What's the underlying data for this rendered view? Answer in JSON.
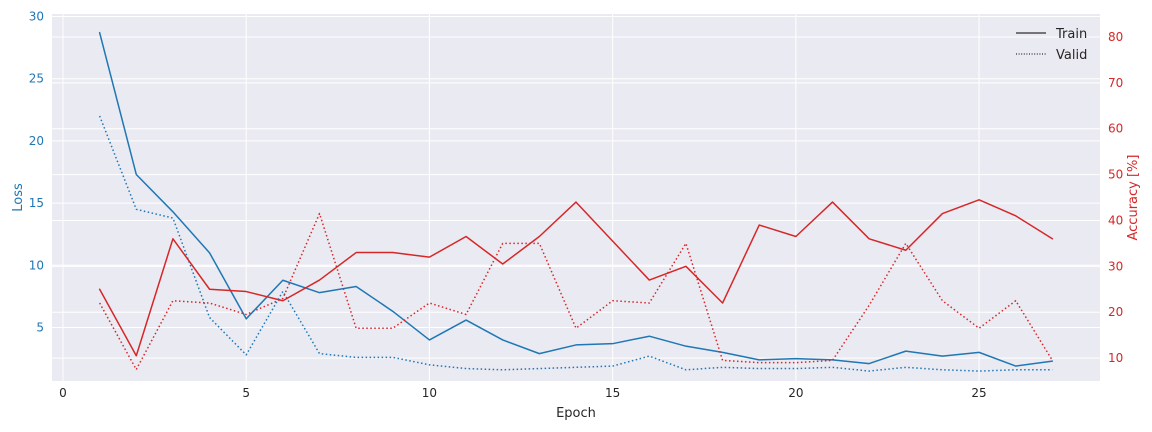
{
  "chart_data": {
    "type": "line",
    "xlabel": "Epoch",
    "xlim": [
      -0.3,
      28.3
    ],
    "xticks": [
      0,
      5,
      10,
      15,
      20,
      25
    ],
    "grid": true,
    "legend": {
      "placement": "top-right",
      "entries": [
        "Train",
        "Valid"
      ]
    },
    "left_axis": {
      "label": "Loss",
      "color": "#1f77b4",
      "ylim": [
        0.7,
        30.2
      ],
      "ticks": [
        5,
        10,
        15,
        20,
        25,
        30
      ]
    },
    "right_axis": {
      "label": "Accuracy [%]",
      "color": "#d62728",
      "ylim": [
        5,
        85
      ],
      "ticks": [
        10,
        20,
        30,
        40,
        50,
        60,
        70,
        80
      ]
    },
    "x": [
      1,
      2,
      3,
      4,
      5,
      6,
      7,
      8,
      9,
      10,
      11,
      12,
      13,
      14,
      15,
      16,
      17,
      18,
      19,
      20,
      21,
      22,
      23,
      24,
      25,
      26,
      27
    ],
    "series": [
      {
        "name": "Train",
        "metric": "Loss",
        "axis": "left",
        "style": "solid",
        "color": "#1f77b4",
        "values": [
          28.7,
          17.3,
          14.3,
          11.0,
          5.7,
          8.8,
          7.8,
          8.3,
          6.3,
          4.0,
          5.6,
          4.0,
          2.9,
          3.6,
          3.7,
          4.3,
          3.5,
          3.0,
          2.4,
          2.5,
          2.4,
          2.1,
          3.1,
          2.7,
          3.0,
          1.9,
          2.3
        ]
      },
      {
        "name": "Valid",
        "metric": "Loss",
        "axis": "left",
        "style": "dotted",
        "color": "#1f77b4",
        "values": [
          22.0,
          14.5,
          13.8,
          5.8,
          2.8,
          7.9,
          2.9,
          2.6,
          2.6,
          2.0,
          1.7,
          1.6,
          1.7,
          1.8,
          1.9,
          2.7,
          1.6,
          1.8,
          1.7,
          1.7,
          1.8,
          1.5,
          1.8,
          1.6,
          1.5,
          1.6,
          1.6
        ]
      },
      {
        "name": "Train",
        "metric": "Accuracy [%]",
        "axis": "right",
        "style": "solid",
        "color": "#d62728",
        "values": [
          25.0,
          10.5,
          36.0,
          25.0,
          24.5,
          22.5,
          27.0,
          33.0,
          33.0,
          32.0,
          36.5,
          30.5,
          36.5,
          44.0,
          35.5,
          27.0,
          30.0,
          22.0,
          39.0,
          36.5,
          44.0,
          36.0,
          33.5,
          41.5,
          44.5,
          41.0,
          36.0
        ]
      },
      {
        "name": "Valid",
        "metric": "Accuracy [%]",
        "axis": "right",
        "style": "dotted",
        "color": "#d62728",
        "values": [
          22.0,
          7.5,
          22.5,
          22.0,
          19.5,
          23.0,
          41.5,
          16.5,
          16.5,
          22.0,
          19.5,
          35.0,
          35.0,
          16.5,
          22.5,
          22.0,
          35.0,
          9.5,
          9.0,
          9.0,
          9.5,
          21.5,
          35.0,
          22.5,
          16.5,
          22.5,
          9.5
        ]
      }
    ]
  }
}
